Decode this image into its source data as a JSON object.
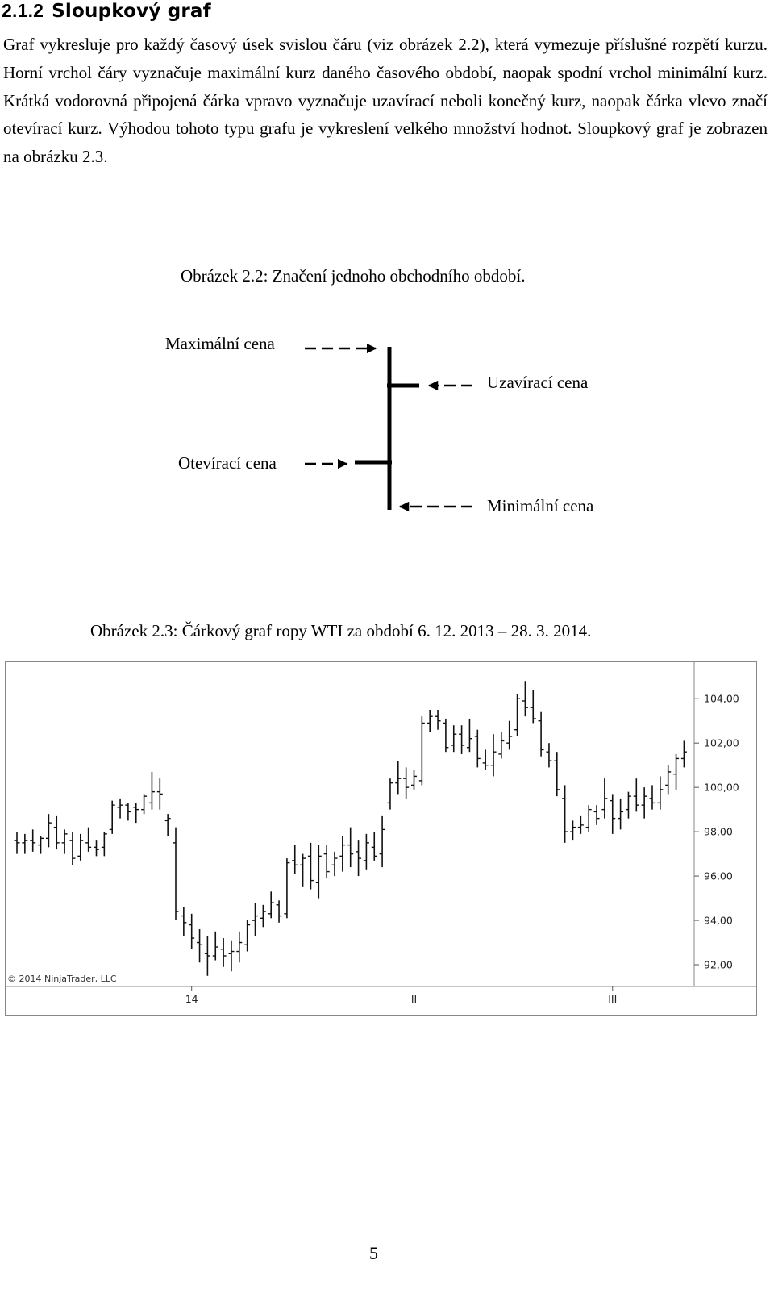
{
  "section": {
    "number": "2.1.2",
    "title": "Sloupkový graf"
  },
  "paragraph": "Graf vykresluje pro každý časový úsek svislou čáru (viz obrázek 2.2), která vymezuje příslušné rozpětí kurzu. Horní vrchol čáry vyznačuje maximální kurz daného časového období, naopak spodní vrchol minimální kurz. Krátká vodorovná připojená čárka vpravo vyznačuje uzavírací neboli konečný kurz, naopak čárka vlevo značí otevírací kurz. Výhodou tohoto typu grafu je vykreslení velkého množství hodnot. Sloupkový graf je zobrazen na obrázku 2.3.",
  "figure1": {
    "caption": "Obrázek 2.2: Značení jednoho obchodního období.",
    "labels": {
      "max": "Maximální cena",
      "close": "Uzavírací cena",
      "open": "Otevírací cena",
      "min": "Minimální cena"
    }
  },
  "figure2": {
    "caption": "Obrázek 2.3: Čárkový graf ropy WTI za období 6. 12. 2013 – 28. 3. 2014.",
    "copyright": "© 2014 NinjaTrader, LLC"
  },
  "chart_data": {
    "type": "bar",
    "ohlc": true,
    "y_axis_position": "right",
    "ylim": [
      91.2,
      105.5
    ],
    "y_ticks": [
      92,
      94,
      96,
      98,
      100,
      102,
      104
    ],
    "y_tick_labels": [
      "92,00",
      "94,00",
      "96,00",
      "98,00",
      "100,00",
      "102,00",
      "104,00"
    ],
    "x_tick_labels": [
      {
        "label": "14",
        "bar_index": 22
      },
      {
        "label": "II",
        "bar_index": 50
      },
      {
        "label": "III",
        "bar_index": 75
      }
    ],
    "bars": [
      {
        "o": 97.6,
        "h": 98.0,
        "l": 97.0,
        "c": 97.5
      },
      {
        "o": 97.5,
        "h": 97.9,
        "l": 97.0,
        "c": 97.6
      },
      {
        "o": 97.6,
        "h": 98.1,
        "l": 97.1,
        "c": 97.5
      },
      {
        "o": 97.4,
        "h": 97.8,
        "l": 97.0,
        "c": 97.7
      },
      {
        "o": 97.7,
        "h": 98.8,
        "l": 97.3,
        "c": 98.4
      },
      {
        "o": 98.2,
        "h": 98.7,
        "l": 97.2,
        "c": 97.5
      },
      {
        "o": 97.5,
        "h": 98.1,
        "l": 97.0,
        "c": 97.9
      },
      {
        "o": 97.6,
        "h": 98.0,
        "l": 96.5,
        "c": 96.8
      },
      {
        "o": 96.9,
        "h": 97.9,
        "l": 96.7,
        "c": 97.6
      },
      {
        "o": 97.5,
        "h": 98.2,
        "l": 97.1,
        "c": 97.3
      },
      {
        "o": 97.3,
        "h": 97.6,
        "l": 96.9,
        "c": 97.2
      },
      {
        "o": 97.3,
        "h": 98.0,
        "l": 96.9,
        "c": 97.9
      },
      {
        "o": 98.1,
        "h": 99.4,
        "l": 97.9,
        "c": 99.2
      },
      {
        "o": 99.1,
        "h": 99.5,
        "l": 98.6,
        "c": 99.2
      },
      {
        "o": 99.2,
        "h": 99.3,
        "l": 98.5,
        "c": 98.9
      },
      {
        "o": 99.1,
        "h": 99.3,
        "l": 98.4,
        "c": 99.0
      },
      {
        "o": 99.0,
        "h": 99.7,
        "l": 98.8,
        "c": 99.6
      },
      {
        "o": 99.3,
        "h": 100.7,
        "l": 99.0,
        "c": 99.8
      },
      {
        "o": 99.8,
        "h": 100.4,
        "l": 99.0,
        "c": 99.7
      },
      {
        "o": 98.5,
        "h": 98.8,
        "l": 97.8,
        "c": 98.6
      },
      {
        "o": 97.5,
        "h": 98.2,
        "l": 94.0,
        "c": 94.4
      },
      {
        "o": 94.2,
        "h": 94.6,
        "l": 93.3,
        "c": 93.9
      },
      {
        "o": 93.8,
        "h": 94.3,
        "l": 92.7,
        "c": 93.2
      },
      {
        "o": 93.0,
        "h": 93.6,
        "l": 92.1,
        "c": 92.9
      },
      {
        "o": 92.5,
        "h": 93.3,
        "l": 91.5,
        "c": 92.4
      },
      {
        "o": 92.4,
        "h": 93.5,
        "l": 92.2,
        "c": 92.8
      },
      {
        "o": 92.7,
        "h": 93.2,
        "l": 91.9,
        "c": 92.4
      },
      {
        "o": 92.5,
        "h": 93.1,
        "l": 91.7,
        "c": 92.6
      },
      {
        "o": 92.6,
        "h": 93.5,
        "l": 92.1,
        "c": 93.0
      },
      {
        "o": 92.9,
        "h": 94.0,
        "l": 92.6,
        "c": 93.8
      },
      {
        "o": 94.0,
        "h": 94.8,
        "l": 93.3,
        "c": 94.2
      },
      {
        "o": 94.1,
        "h": 94.7,
        "l": 93.7,
        "c": 94.4
      },
      {
        "o": 94.3,
        "h": 95.3,
        "l": 94.1,
        "c": 94.8
      },
      {
        "o": 94.7,
        "h": 94.9,
        "l": 93.9,
        "c": 94.2
      },
      {
        "o": 94.3,
        "h": 96.8,
        "l": 94.1,
        "c": 96.6
      },
      {
        "o": 96.7,
        "h": 97.4,
        "l": 96.1,
        "c": 96.5
      },
      {
        "o": 96.5,
        "h": 97.0,
        "l": 95.5,
        "c": 96.8
      },
      {
        "o": 96.9,
        "h": 97.5,
        "l": 95.4,
        "c": 95.8
      },
      {
        "o": 95.7,
        "h": 97.4,
        "l": 95.0,
        "c": 96.9
      },
      {
        "o": 97.0,
        "h": 97.4,
        "l": 95.9,
        "c": 96.2
      },
      {
        "o": 96.5,
        "h": 97.1,
        "l": 96.0,
        "c": 96.8
      },
      {
        "o": 96.9,
        "h": 97.8,
        "l": 96.2,
        "c": 97.4
      },
      {
        "o": 97.4,
        "h": 98.2,
        "l": 96.4,
        "c": 97.0
      },
      {
        "o": 97.1,
        "h": 97.6,
        "l": 96.0,
        "c": 96.8
      },
      {
        "o": 96.7,
        "h": 97.9,
        "l": 96.3,
        "c": 97.5
      },
      {
        "o": 97.3,
        "h": 98.0,
        "l": 96.7,
        "c": 96.9
      },
      {
        "o": 97.0,
        "h": 98.7,
        "l": 96.4,
        "c": 98.1
      },
      {
        "o": 99.3,
        "h": 100.4,
        "l": 99.0,
        "c": 100.2
      },
      {
        "o": 100.2,
        "h": 101.2,
        "l": 99.7,
        "c": 100.4
      },
      {
        "o": 100.4,
        "h": 100.9,
        "l": 99.5,
        "c": 100.0
      },
      {
        "o": 100.1,
        "h": 100.8,
        "l": 99.9,
        "c": 100.5
      },
      {
        "o": 100.3,
        "h": 103.2,
        "l": 100.1,
        "c": 102.9
      },
      {
        "o": 102.9,
        "h": 103.5,
        "l": 102.5,
        "c": 103.2
      },
      {
        "o": 103.2,
        "h": 103.5,
        "l": 102.6,
        "c": 103.0
      },
      {
        "o": 102.9,
        "h": 103.1,
        "l": 101.6,
        "c": 101.8
      },
      {
        "o": 101.9,
        "h": 102.8,
        "l": 101.6,
        "c": 102.4
      },
      {
        "o": 102.4,
        "h": 102.8,
        "l": 101.5,
        "c": 101.9
      },
      {
        "o": 101.8,
        "h": 103.1,
        "l": 101.6,
        "c": 102.2
      },
      {
        "o": 102.3,
        "h": 102.6,
        "l": 100.9,
        "c": 101.3
      },
      {
        "o": 101.1,
        "h": 101.7,
        "l": 100.8,
        "c": 101.0
      },
      {
        "o": 101.0,
        "h": 102.4,
        "l": 100.5,
        "c": 101.6
      },
      {
        "o": 101.5,
        "h": 102.5,
        "l": 101.3,
        "c": 102.1
      },
      {
        "o": 102.0,
        "h": 103.0,
        "l": 101.7,
        "c": 102.3
      },
      {
        "o": 102.6,
        "h": 104.2,
        "l": 102.3,
        "c": 104.0
      },
      {
        "o": 103.9,
        "h": 104.8,
        "l": 103.2,
        "c": 103.6
      },
      {
        "o": 103.6,
        "h": 104.4,
        "l": 102.9,
        "c": 103.1
      },
      {
        "o": 103.0,
        "h": 103.4,
        "l": 101.4,
        "c": 101.7
      },
      {
        "o": 101.6,
        "h": 102.0,
        "l": 100.9,
        "c": 101.2
      },
      {
        "o": 101.2,
        "h": 101.6,
        "l": 99.6,
        "c": 99.9
      },
      {
        "o": 99.5,
        "h": 100.1,
        "l": 97.5,
        "c": 98.0
      },
      {
        "o": 98.0,
        "h": 98.5,
        "l": 97.6,
        "c": 98.2
      },
      {
        "o": 98.2,
        "h": 98.7,
        "l": 97.9,
        "c": 98.3
      },
      {
        "o": 98.2,
        "h": 99.2,
        "l": 98.0,
        "c": 99.0
      },
      {
        "o": 98.9,
        "h": 99.2,
        "l": 98.3,
        "c": 98.6
      },
      {
        "o": 99.0,
        "h": 100.4,
        "l": 98.6,
        "c": 99.5
      },
      {
        "o": 99.4,
        "h": 99.7,
        "l": 97.9,
        "c": 98.6
      },
      {
        "o": 98.6,
        "h": 99.5,
        "l": 98.1,
        "c": 98.9
      },
      {
        "o": 99.0,
        "h": 99.8,
        "l": 98.6,
        "c": 99.6
      },
      {
        "o": 99.6,
        "h": 100.4,
        "l": 98.9,
        "c": 99.2
      },
      {
        "o": 99.2,
        "h": 100.0,
        "l": 98.6,
        "c": 99.6
      },
      {
        "o": 99.5,
        "h": 100.1,
        "l": 99.0,
        "c": 99.3
      },
      {
        "o": 99.3,
        "h": 100.5,
        "l": 99.0,
        "c": 99.9
      },
      {
        "o": 100.1,
        "h": 101.0,
        "l": 99.7,
        "c": 100.7
      },
      {
        "o": 100.6,
        "h": 101.5,
        "l": 99.9,
        "c": 101.3
      },
      {
        "o": 101.3,
        "h": 102.1,
        "l": 100.9,
        "c": 101.6
      }
    ]
  }
}
